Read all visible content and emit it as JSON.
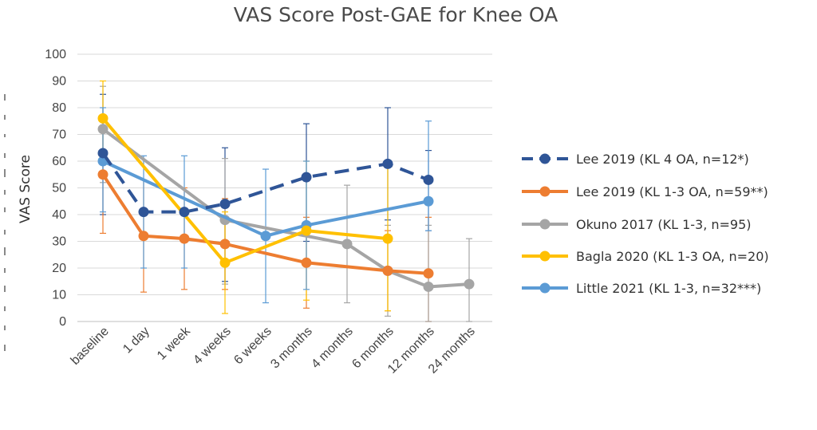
{
  "chart_data": {
    "type": "line",
    "title": "VAS Score Post-GAE for Knee OA",
    "xlabel": "",
    "ylabel": "VAS Score",
    "ylim": [
      0,
      100
    ],
    "yticks": [
      0,
      10,
      20,
      30,
      40,
      50,
      60,
      70,
      80,
      90,
      100
    ],
    "categories": [
      "baseline",
      "1 day",
      "1 week",
      "4 weeks",
      "6 weeks",
      "3 months",
      "4 months",
      "6 months",
      "12 months",
      "24 months"
    ],
    "grid": "horizontal",
    "legend_position": "right",
    "series": [
      {
        "name": "Lee 2019 (KL 4 OA, n=12*)",
        "color": "#2f5597",
        "dashed": true,
        "values": [
          63,
          41,
          41,
          44,
          null,
          54,
          null,
          59,
          53,
          null
        ],
        "error": [
          [
            40,
            85
          ],
          null,
          null,
          [
            15,
            65
          ],
          null,
          [
            30,
            74
          ],
          null,
          [
            38,
            80
          ],
          [
            34,
            64
          ],
          null
        ]
      },
      {
        "name": "Lee 2019 (KL 1-3 OA, n=59**)",
        "color": "#ed7d31",
        "dashed": false,
        "values": [
          55,
          32,
          31,
          29,
          null,
          22,
          null,
          19,
          18,
          null
        ],
        "error": [
          [
            33,
            77
          ],
          [
            11,
            53
          ],
          [
            12,
            50
          ],
          [
            12,
            46
          ],
          null,
          [
            5,
            39
          ],
          null,
          [
            4,
            34
          ],
          [
            0,
            39
          ],
          null
        ]
      },
      {
        "name": "Okuno 2017 (KL 1-3, n=95)",
        "color": "#a5a5a5",
        "dashed": false,
        "values": [
          72,
          null,
          null,
          38,
          null,
          null,
          29,
          19,
          13,
          14
        ],
        "error": [
          [
            52,
            88
          ],
          null,
          null,
          [
            14,
            61
          ],
          null,
          null,
          [
            7,
            51
          ],
          [
            2,
            36
          ],
          [
            0,
            36
          ],
          [
            0,
            31
          ]
        ]
      },
      {
        "name": "Bagla 2020 (KL 1-3 OA, n=20)",
        "color": "#ffc000",
        "dashed": false,
        "values": [
          76,
          null,
          null,
          22,
          null,
          34,
          null,
          31,
          null,
          null
        ],
        "error": [
          [
            60,
            90
          ],
          null,
          null,
          [
            3,
            41
          ],
          null,
          [
            8,
            60
          ],
          null,
          [
            4,
            60
          ],
          null,
          null
        ]
      },
      {
        "name": "Little 2021 (KL 1-3, n=32***)",
        "color": "#5b9bd5",
        "dashed": false,
        "values": [
          60,
          null,
          null,
          null,
          32,
          36,
          null,
          null,
          45,
          null
        ],
        "error": [
          [
            41,
            80
          ],
          [
            20,
            62
          ],
          [
            20,
            62
          ],
          null,
          [
            7,
            57
          ],
          [
            12,
            60
          ],
          null,
          null,
          [
            34,
            75
          ],
          null
        ]
      }
    ]
  }
}
